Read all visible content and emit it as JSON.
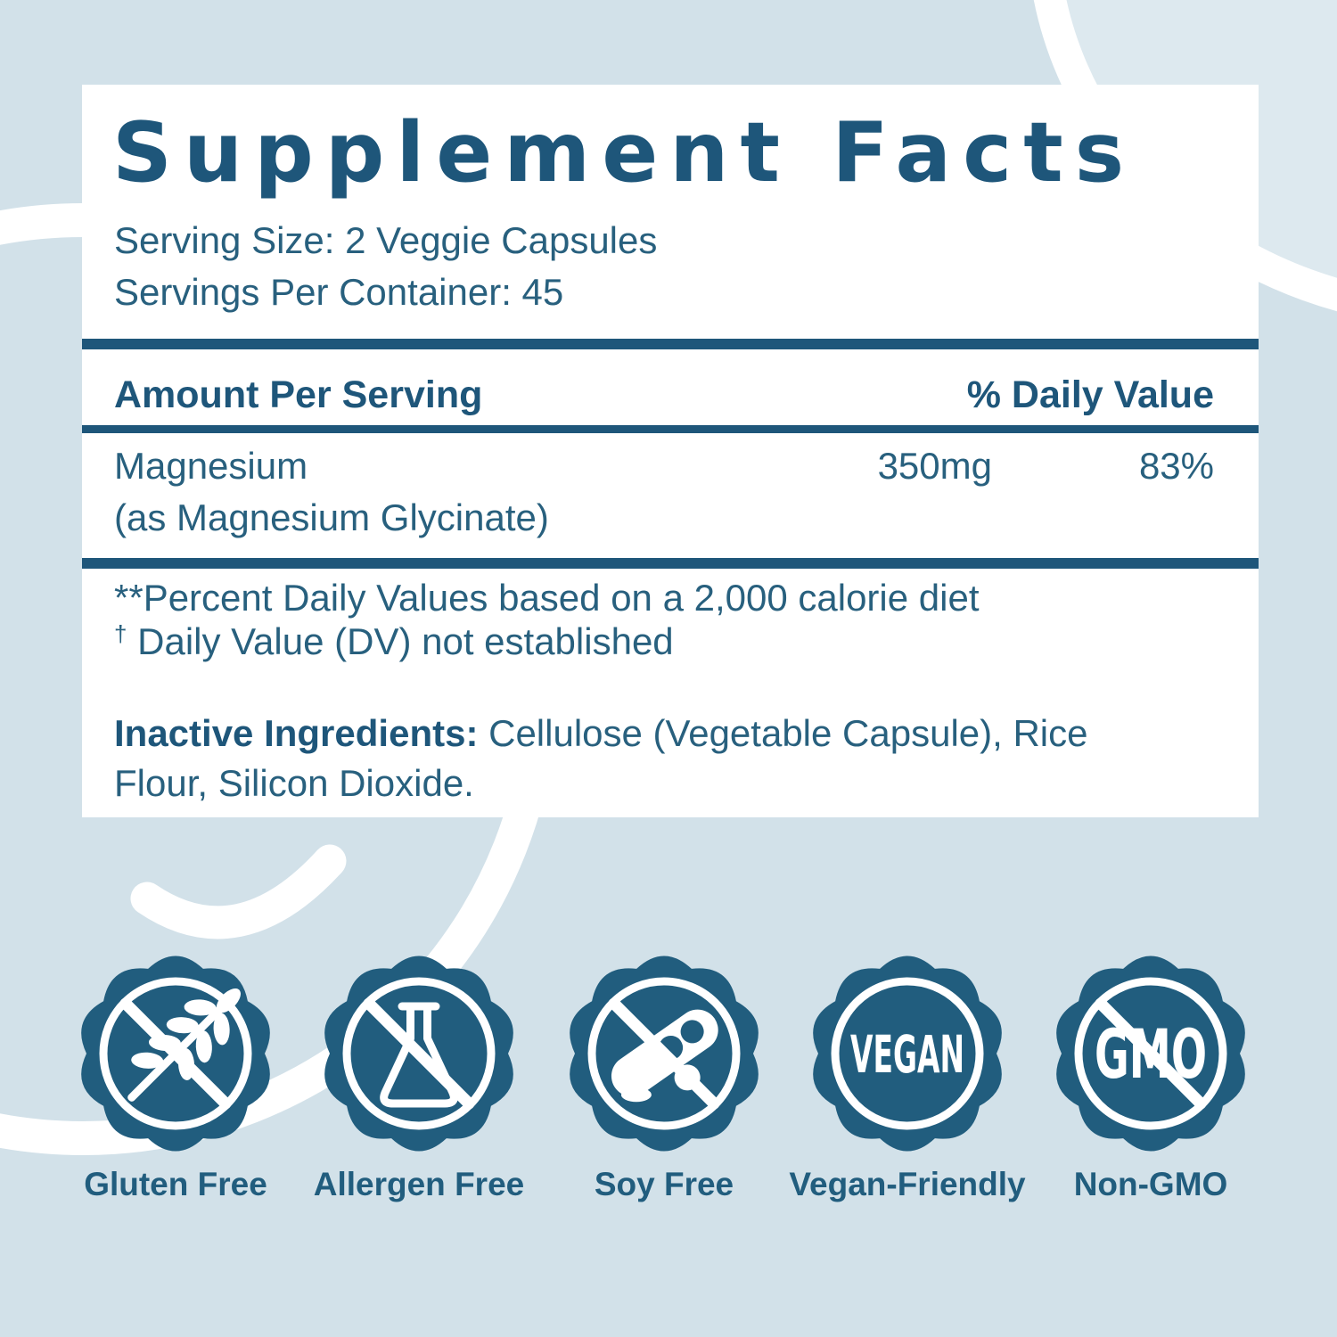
{
  "panel": {
    "title": "Supplement Facts",
    "serving_size": "Serving Size: 2 Veggie Capsules",
    "servings_per_container": "Servings Per Container: 45",
    "table": {
      "amount_header": "Amount Per Serving",
      "dv_header": "% Daily Value",
      "rows": [
        {
          "name": "Magnesium",
          "detail": "(as Magnesium Glycinate)",
          "amount": "350mg",
          "daily_value": "83%"
        }
      ]
    },
    "footnotes": {
      "line1": "**Percent Daily Values based on a 2,000 calorie diet",
      "dagger": "†",
      "line2": "Daily Value (DV) not established"
    },
    "inactive_ingredients": {
      "label": "Inactive Ingredients:",
      "text": "Cellulose (Vegetable Capsule), Rice Flour, Silicon Dioxide."
    }
  },
  "badges": [
    {
      "id": "gluten-free",
      "label": "Gluten Free",
      "icon": "wheat-icon",
      "slash": true,
      "badge_text": ""
    },
    {
      "id": "allergen-free",
      "label": "Allergen Free",
      "icon": "flask-icon",
      "slash": true,
      "badge_text": ""
    },
    {
      "id": "soy-free",
      "label": "Soy Free",
      "icon": "soybean-icon",
      "slash": true,
      "badge_text": ""
    },
    {
      "id": "vegan",
      "label": "Vegan-Friendly",
      "icon": "vegan-text",
      "slash": false,
      "badge_text": "VEGAN"
    },
    {
      "id": "non-gmo",
      "label": "Non-GMO",
      "icon": "gmo-text",
      "slash": true,
      "badge_text": "GMO"
    }
  ],
  "colors": {
    "background": "#d2e1e9",
    "background_light": "#dde9ef",
    "panel": "#ffffff",
    "ink": "#1e567a",
    "body_ink": "#28607e",
    "badge": "#215d7e",
    "white": "#ffffff"
  }
}
